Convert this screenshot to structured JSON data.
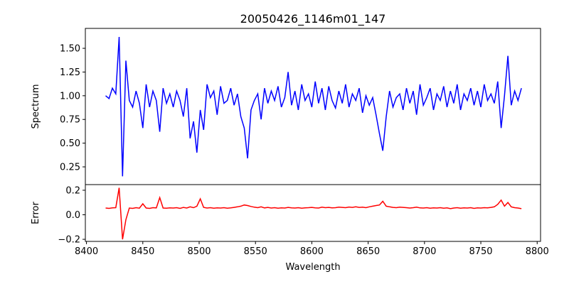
{
  "chart_data": [
    {
      "type": "line",
      "title": "20050426_1146m01_147",
      "xlabel": "",
      "ylabel": "Spectrum",
      "xlim": [
        8399,
        8803
      ],
      "ylim": [
        0.063,
        1.71
      ],
      "yticks": [
        0.25,
        0.5,
        0.75,
        1.0,
        1.25,
        1.5
      ],
      "ytick_labels": [
        "0.25",
        "0.50",
        "0.75",
        "1.00",
        "1.25",
        "1.50"
      ],
      "color": "#0000ff",
      "x_start": 8417,
      "x_step": 3,
      "values": [
        1.0,
        0.97,
        1.08,
        1.02,
        1.62,
        0.15,
        1.37,
        0.95,
        0.88,
        1.05,
        0.92,
        0.66,
        1.12,
        0.88,
        1.05,
        0.95,
        0.62,
        1.08,
        0.92,
        1.02,
        0.88,
        1.05,
        0.95,
        0.78,
        1.08,
        0.55,
        0.73,
        0.4,
        0.85,
        0.64,
        1.12,
        0.98,
        1.05,
        0.8,
        1.1,
        0.92,
        0.95,
        1.08,
        0.9,
        1.02,
        0.78,
        0.66,
        0.34,
        0.85,
        0.95,
        1.02,
        0.75,
        1.08,
        0.92,
        1.05,
        0.95,
        1.1,
        0.88,
        0.98,
        1.25,
        0.9,
        1.05,
        0.85,
        1.12,
        0.95,
        1.02,
        0.88,
        1.15,
        0.92,
        1.08,
        0.85,
        1.1,
        0.95,
        0.87,
        1.05,
        0.92,
        1.12,
        0.88,
        1.02,
        0.95,
        1.08,
        0.82,
        1.0,
        0.9,
        0.98,
        0.8,
        0.6,
        0.42,
        0.78,
        1.05,
        0.88,
        0.98,
        1.02,
        0.85,
        1.08,
        0.92,
        1.05,
        0.8,
        1.12,
        0.9,
        0.98,
        1.08,
        0.85,
        1.02,
        0.95,
        1.1,
        0.88,
        1.05,
        0.92,
        1.12,
        0.85,
        1.02,
        0.95,
        1.08,
        0.9,
        1.05,
        0.88,
        1.12,
        0.95,
        1.02,
        0.92,
        1.15,
        0.66,
        1.0,
        1.42,
        0.9,
        1.05,
        0.95,
        1.08
      ]
    },
    {
      "type": "line",
      "xlabel": "Wavelength",
      "ylabel": "Error",
      "xlim": [
        8399,
        8803
      ],
      "ylim": [
        -0.217,
        0.246
      ],
      "xticks": [
        8400,
        8450,
        8500,
        8550,
        8600,
        8650,
        8700,
        8750,
        8800
      ],
      "xtick_labels": [
        "8400",
        "8450",
        "8500",
        "8550",
        "8600",
        "8650",
        "8700",
        "8750",
        "8800"
      ],
      "yticks": [
        -0.2,
        0.0,
        0.2
      ],
      "ytick_labels": [
        "−0.2",
        "0.0",
        "0.2"
      ],
      "color": "#ff0000",
      "x_start": 8417,
      "x_step": 3,
      "values": [
        0.055,
        0.052,
        0.056,
        0.058,
        0.22,
        -0.2,
        -0.04,
        0.055,
        0.052,
        0.058,
        0.054,
        0.09,
        0.055,
        0.052,
        0.058,
        0.056,
        0.14,
        0.055,
        0.053,
        0.056,
        0.055,
        0.058,
        0.052,
        0.06,
        0.055,
        0.065,
        0.058,
        0.07,
        0.13,
        0.06,
        0.055,
        0.058,
        0.054,
        0.056,
        0.055,
        0.058,
        0.053,
        0.056,
        0.06,
        0.065,
        0.07,
        0.08,
        0.075,
        0.068,
        0.062,
        0.058,
        0.065,
        0.056,
        0.06,
        0.055,
        0.058,
        0.054,
        0.056,
        0.055,
        0.06,
        0.057,
        0.055,
        0.058,
        0.054,
        0.056,
        0.058,
        0.06,
        0.057,
        0.055,
        0.062,
        0.058,
        0.06,
        0.056,
        0.058,
        0.062,
        0.06,
        0.058,
        0.063,
        0.06,
        0.065,
        0.06,
        0.062,
        0.058,
        0.065,
        0.07,
        0.075,
        0.08,
        0.11,
        0.07,
        0.065,
        0.06,
        0.058,
        0.062,
        0.06,
        0.058,
        0.055,
        0.058,
        0.062,
        0.056,
        0.055,
        0.058,
        0.054,
        0.056,
        0.055,
        0.058,
        0.054,
        0.056,
        0.05,
        0.055,
        0.058,
        0.054,
        0.056,
        0.055,
        0.058,
        0.052,
        0.056,
        0.055,
        0.058,
        0.056,
        0.06,
        0.065,
        0.085,
        0.12,
        0.07,
        0.1,
        0.065,
        0.058,
        0.055,
        0.05
      ]
    }
  ]
}
